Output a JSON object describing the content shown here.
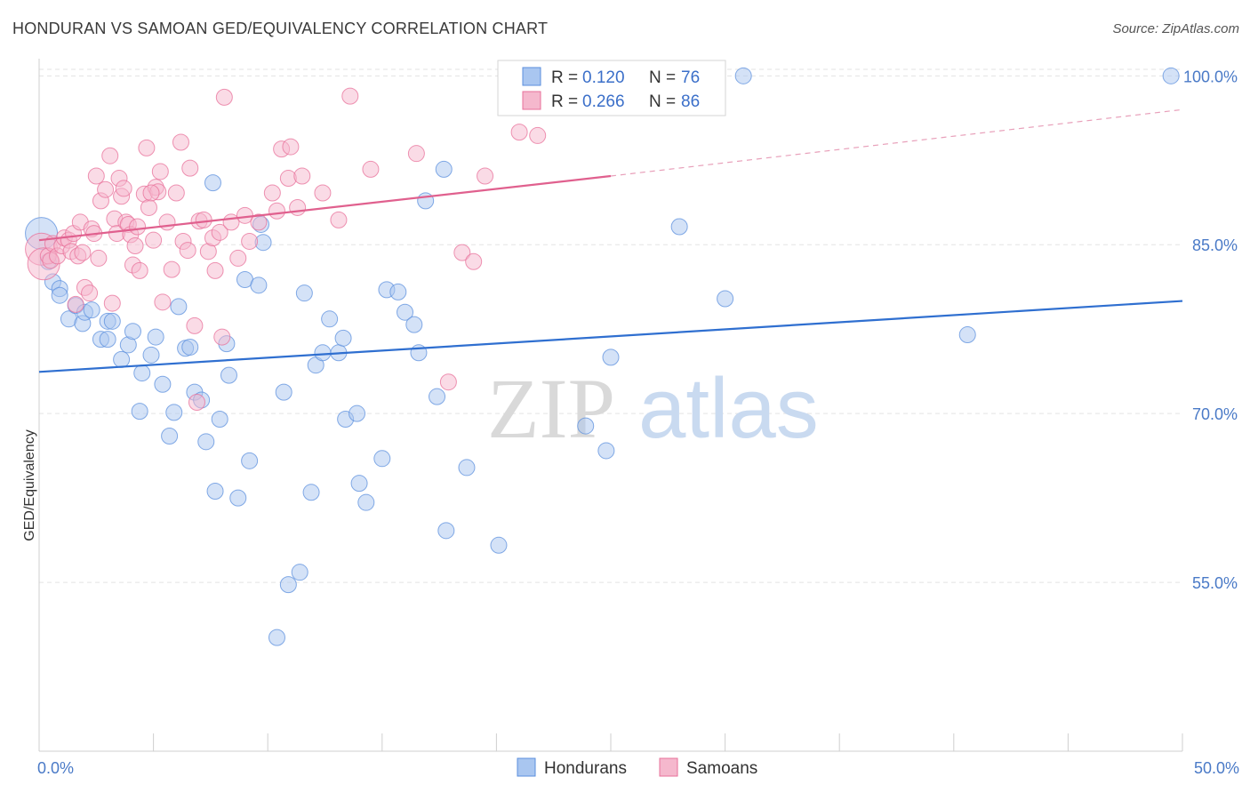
{
  "title": "HONDURAN VS SAMOAN GED/EQUIVALENCY CORRELATION CHART",
  "source": "Source: ZipAtlas.com",
  "watermark": {
    "zip": "ZIP",
    "atlas": "atlas"
  },
  "legend": {
    "rows": [
      {
        "r_label": "R =",
        "r_value": "0.120",
        "n_label": "N =",
        "n_value": "76"
      },
      {
        "r_label": "R =",
        "r_value": "0.266",
        "n_label": "N =",
        "n_value": "86"
      }
    ]
  },
  "colors": {
    "hondurans": "#5b8fde",
    "hondurans_fill": "#a9c6f0",
    "samoans": "#e8709a",
    "samoans_fill": "#f5b8cd",
    "tick_text": "#4a7ac7"
  },
  "chart_data": {
    "type": "scatter",
    "title": "HONDURAN VS SAMOAN GED/EQUIVALENCY CORRELATION CHART",
    "xlabel": "",
    "ylabel": "GED/Equivalency",
    "xlim": [
      0,
      50
    ],
    "ylim": [
      40,
      102
    ],
    "x_tick_labels": [
      "0.0%",
      "50.0%"
    ],
    "y_ticks": [
      55,
      70,
      85,
      100
    ],
    "y_tick_labels": [
      "55.0%",
      "70.0%",
      "85.0%",
      "100.0%"
    ],
    "grid": true,
    "legend_position": "bottom-center",
    "series": [
      {
        "name": "Hondurans",
        "color": "#5b8fde",
        "trend": {
          "x": [
            0,
            50
          ],
          "y": [
            73.7,
            80.0
          ],
          "dashed_beyond": null
        },
        "points": [
          [
            0.1,
            86.0
          ],
          [
            0.4,
            83.5
          ],
          [
            0.6,
            81.7
          ],
          [
            0.9,
            81.1
          ],
          [
            0.9,
            80.5
          ],
          [
            1.3,
            78.4
          ],
          [
            1.6,
            79.6
          ],
          [
            1.9,
            78.0
          ],
          [
            2.0,
            79.0
          ],
          [
            2.3,
            79.2
          ],
          [
            2.7,
            76.6
          ],
          [
            3.0,
            76.6
          ],
          [
            3.0,
            78.2
          ],
          [
            3.2,
            78.2
          ],
          [
            3.6,
            74.8
          ],
          [
            3.9,
            76.1
          ],
          [
            4.1,
            77.3
          ],
          [
            4.4,
            70.2
          ],
          [
            4.5,
            73.6
          ],
          [
            4.9,
            75.2
          ],
          [
            5.1,
            76.8
          ],
          [
            5.4,
            72.6
          ],
          [
            5.7,
            68.0
          ],
          [
            5.9,
            70.1
          ],
          [
            6.1,
            79.5
          ],
          [
            6.4,
            75.8
          ],
          [
            6.6,
            75.9
          ],
          [
            6.8,
            71.9
          ],
          [
            7.1,
            71.2
          ],
          [
            7.3,
            67.5
          ],
          [
            7.6,
            90.5
          ],
          [
            7.7,
            63.1
          ],
          [
            7.9,
            69.5
          ],
          [
            8.2,
            76.2
          ],
          [
            8.3,
            73.4
          ],
          [
            8.7,
            62.5
          ],
          [
            9.0,
            81.9
          ],
          [
            9.2,
            65.8
          ],
          [
            9.6,
            81.4
          ],
          [
            9.7,
            86.8
          ],
          [
            9.8,
            85.2
          ],
          [
            10.4,
            50.1
          ],
          [
            10.7,
            71.9
          ],
          [
            10.9,
            54.8
          ],
          [
            11.4,
            55.9
          ],
          [
            11.6,
            80.7
          ],
          [
            11.9,
            63.0
          ],
          [
            12.1,
            74.3
          ],
          [
            12.4,
            75.4
          ],
          [
            12.7,
            78.4
          ],
          [
            13.1,
            75.4
          ],
          [
            13.3,
            76.7
          ],
          [
            13.4,
            69.5
          ],
          [
            13.9,
            70.0
          ],
          [
            14.0,
            63.8
          ],
          [
            14.3,
            62.1
          ],
          [
            15.0,
            66.0
          ],
          [
            15.2,
            81.0
          ],
          [
            15.7,
            80.8
          ],
          [
            16.0,
            79.0
          ],
          [
            16.4,
            77.9
          ],
          [
            16.6,
            75.4
          ],
          [
            16.9,
            88.9
          ],
          [
            17.4,
            71.5
          ],
          [
            17.7,
            91.7
          ],
          [
            17.8,
            59.6
          ],
          [
            18.7,
            65.2
          ],
          [
            20.1,
            58.3
          ],
          [
            23.9,
            68.9
          ],
          [
            24.8,
            66.7
          ],
          [
            25.0,
            75.0
          ],
          [
            28.0,
            86.6
          ],
          [
            30.0,
            80.2
          ],
          [
            30.8,
            100.0
          ],
          [
            40.6,
            77.0
          ],
          [
            49.5,
            100.0
          ]
        ]
      },
      {
        "name": "Samoans",
        "color": "#e8709a",
        "trend": {
          "x": [
            0,
            25
          ],
          "y": [
            85.4,
            91.1
          ],
          "dashed_x": [
            25,
            50
          ],
          "dashed_y": [
            91.1,
            97.0
          ]
        },
        "points": [
          [
            0.1,
            84.6
          ],
          [
            0.2,
            83.3
          ],
          [
            0.4,
            84.0
          ],
          [
            0.5,
            83.6
          ],
          [
            0.6,
            85.1
          ],
          [
            0.8,
            84.0
          ],
          [
            1.0,
            84.9
          ],
          [
            1.1,
            85.6
          ],
          [
            1.3,
            85.4
          ],
          [
            1.4,
            84.4
          ],
          [
            1.5,
            86.0
          ],
          [
            1.7,
            84.0
          ],
          [
            1.8,
            87.0
          ],
          [
            1.9,
            84.3
          ],
          [
            2.0,
            81.2
          ],
          [
            2.2,
            80.7
          ],
          [
            2.3,
            86.4
          ],
          [
            2.4,
            86.0
          ],
          [
            2.5,
            91.1
          ],
          [
            2.6,
            83.8
          ],
          [
            2.7,
            88.9
          ],
          [
            2.9,
            89.9
          ],
          [
            3.1,
            92.9
          ],
          [
            3.2,
            79.8
          ],
          [
            3.3,
            87.3
          ],
          [
            3.4,
            86.0
          ],
          [
            3.5,
            90.9
          ],
          [
            3.6,
            89.3
          ],
          [
            3.7,
            90.0
          ],
          [
            3.8,
            87.0
          ],
          [
            3.9,
            86.8
          ],
          [
            4.0,
            85.9
          ],
          [
            4.1,
            83.2
          ],
          [
            4.2,
            84.9
          ],
          [
            4.3,
            86.6
          ],
          [
            4.4,
            82.7
          ],
          [
            4.6,
            89.5
          ],
          [
            4.7,
            93.6
          ],
          [
            4.8,
            88.3
          ],
          [
            5.0,
            85.4
          ],
          [
            5.1,
            90.1
          ],
          [
            5.2,
            89.7
          ],
          [
            5.3,
            91.5
          ],
          [
            5.4,
            79.9
          ],
          [
            5.6,
            87.0
          ],
          [
            5.8,
            82.8
          ],
          [
            6.0,
            89.6
          ],
          [
            6.2,
            94.1
          ],
          [
            6.3,
            85.3
          ],
          [
            6.5,
            84.5
          ],
          [
            6.6,
            91.8
          ],
          [
            6.8,
            77.8
          ],
          [
            6.9,
            71.0
          ],
          [
            7.0,
            87.1
          ],
          [
            7.2,
            87.2
          ],
          [
            7.4,
            84.4
          ],
          [
            7.6,
            85.6
          ],
          [
            7.7,
            82.7
          ],
          [
            7.9,
            86.1
          ],
          [
            8.0,
            76.8
          ],
          [
            8.1,
            98.1
          ],
          [
            8.4,
            87.0
          ],
          [
            8.7,
            83.8
          ],
          [
            9.0,
            87.6
          ],
          [
            9.2,
            85.3
          ],
          [
            9.6,
            87.0
          ],
          [
            10.2,
            89.6
          ],
          [
            10.4,
            88.0
          ],
          [
            10.6,
            93.5
          ],
          [
            10.9,
            90.9
          ],
          [
            11.0,
            93.7
          ],
          [
            11.3,
            88.3
          ],
          [
            11.5,
            91.1
          ],
          [
            12.4,
            89.6
          ],
          [
            13.1,
            87.2
          ],
          [
            13.6,
            98.2
          ],
          [
            14.5,
            91.7
          ],
          [
            16.5,
            93.1
          ],
          [
            17.9,
            72.8
          ],
          [
            18.5,
            84.3
          ],
          [
            19.0,
            83.5
          ],
          [
            19.5,
            91.1
          ],
          [
            21.0,
            95.0
          ],
          [
            21.8,
            94.7
          ],
          [
            4.9,
            89.6
          ],
          [
            1.6,
            79.7
          ]
        ]
      }
    ]
  },
  "bottom_legend": [
    "Hondurans",
    "Samoans"
  ]
}
